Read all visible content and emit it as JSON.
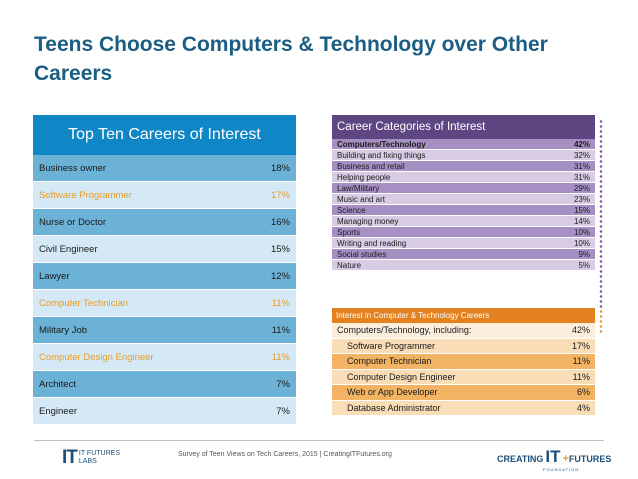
{
  "title": "Teens Choose Computers & Technology over Other Careers",
  "left": {
    "header": "Top Ten Careers of Interest",
    "rows": [
      {
        "label": "Business owner",
        "value": "18%"
      },
      {
        "label": "Software Programmer",
        "value": "17%"
      },
      {
        "label": "Nurse or Doctor",
        "value": "16%"
      },
      {
        "label": "Civil Engineer",
        "value": "15%"
      },
      {
        "label": "Lawyer",
        "value": "12%"
      },
      {
        "label": "Computer Technician",
        "value": "11%"
      },
      {
        "label": "Military Job",
        "value": "11%"
      },
      {
        "label": "Computer Design Engineer",
        "value": "11%"
      },
      {
        "label": "Architect",
        "value": "7%"
      },
      {
        "label": "Engineer",
        "value": "7%"
      }
    ]
  },
  "right_top": {
    "header": "Career Categories of Interest",
    "rows": [
      {
        "label": "Computers/Technology",
        "value": "42%"
      },
      {
        "label": "Building and fixing things",
        "value": "32%"
      },
      {
        "label": "Business and retail",
        "value": "31%"
      },
      {
        "label": "Helping people",
        "value": "31%"
      },
      {
        "label": "Law/Military",
        "value": "29%"
      },
      {
        "label": "Music and art",
        "value": "23%"
      },
      {
        "label": "Science",
        "value": "15%"
      },
      {
        "label": "Managing money",
        "value": "14%"
      },
      {
        "label": "Sports",
        "value": "10%"
      },
      {
        "label": "Writing and reading",
        "value": "10%"
      },
      {
        "label": "Social studies",
        "value": "9%"
      },
      {
        "label": "Nature",
        "value": "5%"
      }
    ]
  },
  "right_bottom": {
    "header": "Interest in Computer & Technology Careers",
    "rows": [
      {
        "label": "Computers/Technology, including:",
        "value": "42%"
      },
      {
        "label": "Software Programmer",
        "value": "17%"
      },
      {
        "label": "Computer Technician",
        "value": "11%"
      },
      {
        "label": "Computer Design Engineer",
        "value": "11%"
      },
      {
        "label": "Web or App Developer",
        "value": "6%"
      },
      {
        "label": "Database Administrator",
        "value": "4%"
      }
    ]
  },
  "footer": "Survey of Teen Views on Tech Careers, 2015  |  CreatingITFutures.org",
  "logo_left": {
    "mark": "IT",
    "line1": "IT FUTURES",
    "line2": "LABS"
  },
  "logo_right": {
    "creating": "CREATING",
    "it": "IT",
    "futures": "FUTURES",
    "foundation": "FOUNDATION"
  },
  "colors": {
    "title": "#1c5d84",
    "blue_header": "#0f86c6",
    "blue_dark": "#6cb2d7",
    "blue_light": "#d4e9f5",
    "highlight": "#e79c2a",
    "purple_header": "#5e4683",
    "purple_dark": "#a690c3",
    "purple_light": "#d7cce4",
    "orange_header": "#e3811f",
    "orange_dark": "#f3b364",
    "orange_light": "#f9ddb6"
  }
}
